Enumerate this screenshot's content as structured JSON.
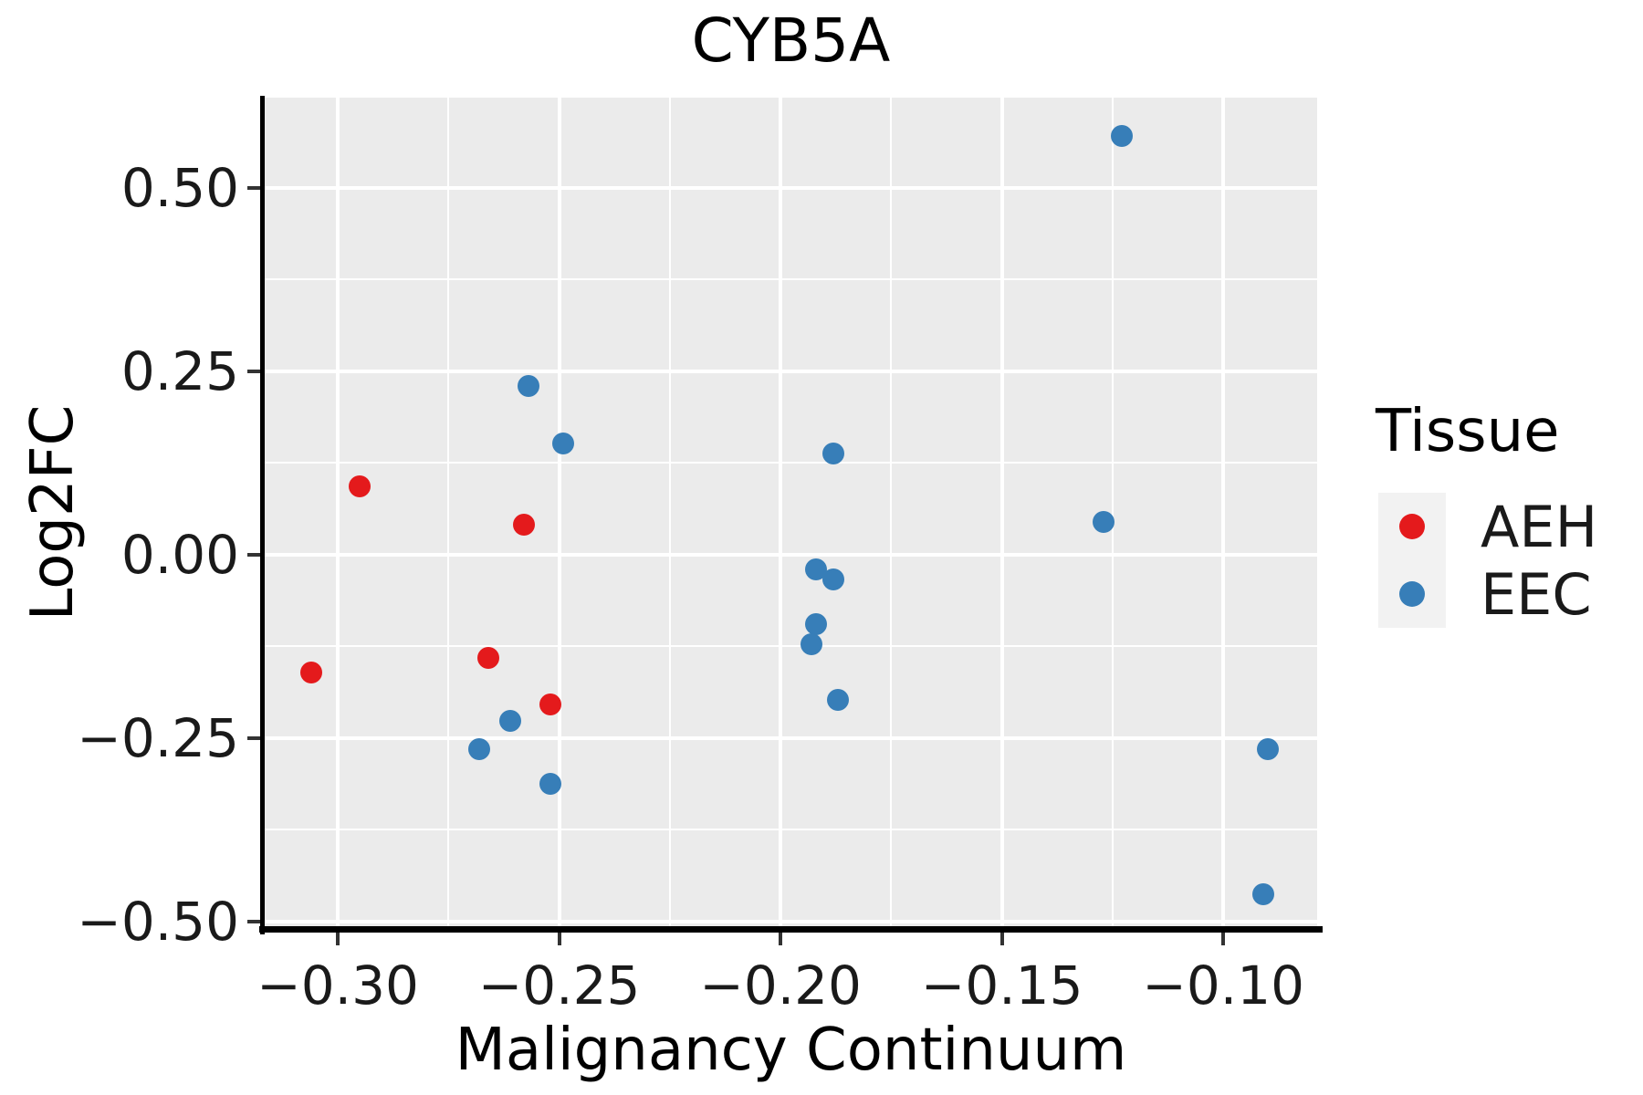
{
  "title": "CYB5A",
  "axes": {
    "x_label": "Malignancy Continuum",
    "y_label": "Log2FC"
  },
  "legend": {
    "title": "Tissue"
  },
  "colors": {
    "aeh": "#E41A1C",
    "eec": "#377EB8",
    "panel_background": "#EBEBEB",
    "gridline": "#FFFFFF",
    "legend_key_background": "#F2F2F2",
    "axis_line": "#000000"
  },
  "chart_data": {
    "type": "scatter",
    "title": "CYB5A",
    "xlabel": "Malignancy Continuum",
    "ylabel": "Log2FC",
    "xlim": [
      -0.3165,
      -0.0788
    ],
    "ylim": [
      -0.509,
      0.623
    ],
    "grid": true,
    "legend_title": "Tissue",
    "legend_position": "right",
    "x_ticks": [
      -0.3,
      -0.25,
      -0.2,
      -0.15,
      -0.1
    ],
    "x_tick_labels": [
      "−0.30",
      "−0.25",
      "−0.20",
      "−0.15",
      "−0.10"
    ],
    "x_minor_ticks": [
      -0.275,
      -0.225,
      -0.175,
      -0.125
    ],
    "y_ticks": [
      0.5,
      0.25,
      0.0,
      -0.25,
      -0.5
    ],
    "y_tick_labels": [
      "0.50",
      "0.25",
      "0.00",
      "−0.25",
      "−0.50"
    ],
    "y_minor_ticks": [
      0.375,
      0.125,
      -0.125,
      -0.375
    ],
    "series": [
      {
        "name": "AEH",
        "color": "#E41A1C",
        "points": [
          [
            -0.295,
            0.093
          ],
          [
            -0.258,
            0.041
          ],
          [
            -0.306,
            -0.161
          ],
          [
            -0.266,
            -0.141
          ],
          [
            -0.252,
            -0.204
          ]
        ]
      },
      {
        "name": "EEC",
        "color": "#377EB8",
        "points": [
          [
            -0.257,
            0.23
          ],
          [
            -0.249,
            0.151
          ],
          [
            -0.188,
            0.138
          ],
          [
            -0.192,
            -0.02
          ],
          [
            -0.188,
            -0.034
          ],
          [
            -0.192,
            -0.095
          ],
          [
            -0.193,
            -0.122
          ],
          [
            -0.187,
            -0.198
          ],
          [
            -0.261,
            -0.226
          ],
          [
            -0.268,
            -0.265
          ],
          [
            -0.252,
            -0.313
          ],
          [
            -0.127,
            0.044
          ],
          [
            -0.123,
            0.571
          ],
          [
            -0.09,
            -0.265
          ],
          [
            -0.091,
            -0.463
          ]
        ]
      }
    ]
  }
}
